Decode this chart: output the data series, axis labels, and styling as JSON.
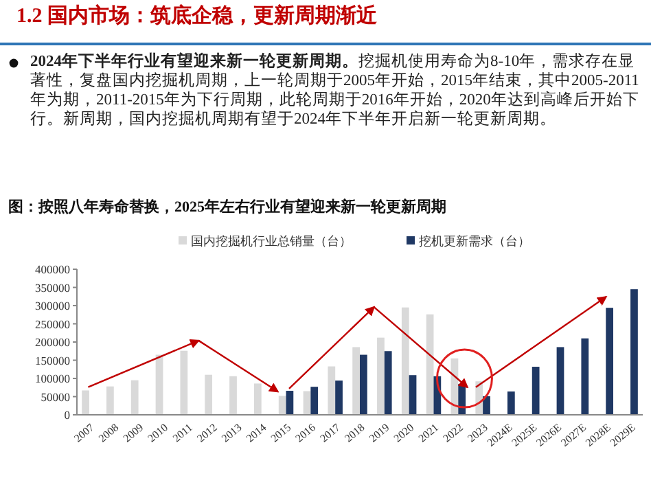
{
  "chart_data": {
    "type": "bar",
    "title": "图：按照八年寿命替换，2025年左右行业有望迎来新一轮更新周期",
    "annotations": [
      "1.2 国内市场：筑底企稳，更新周期渐近",
      "2024年下半年行业有望迎来新一轮更新周期。",
      "挖掘机使用寿命为8-10年，需求存在显著性，复盘国内挖掘机周期，上一轮周期于2005年开始，2015年结束，其中2005-2011年为期，2011-2015年为下行周期，此轮周期于2016年开始，2020年达到高峰后开始下行。新周期，国内挖掘机周期有望于2024年下半年开启新一轮更新周期。"
    ],
    "categories": [
      "2007",
      "2008",
      "2009",
      "2010",
      "2011",
      "2012",
      "2013",
      "2014",
      "2015",
      "2016",
      "2017",
      "2018",
      "2019",
      "2020",
      "2021",
      "2022",
      "2023",
      "2024E",
      "2025E",
      "2026E",
      "2027E",
      "2028E",
      "2029E"
    ],
    "series": [
      {
        "name": "国内挖掘机行业总销量（台）",
        "color": "#d9d9d9",
        "values": [
          67000,
          78000,
          95000,
          165000,
          176000,
          110000,
          106000,
          86000,
          52000,
          65000,
          133000,
          186000,
          212000,
          295000,
          276000,
          155000,
          92000,
          null,
          null,
          null,
          null,
          null,
          null
        ]
      },
      {
        "name": "挖机更新需求（台）",
        "color": "#1f3864",
        "values": [
          null,
          null,
          null,
          null,
          null,
          null,
          null,
          null,
          66000,
          77000,
          94000,
          165000,
          175000,
          109000,
          106000,
          85000,
          51000,
          64000,
          132000,
          186000,
          210000,
          294000,
          345000
        ]
      }
    ],
    "ylim": [
      0,
      400000
    ],
    "yticks": [
      0,
      50000,
      100000,
      150000,
      200000,
      250000,
      300000,
      350000,
      400000
    ],
    "grid": false,
    "legend": "top"
  }
}
